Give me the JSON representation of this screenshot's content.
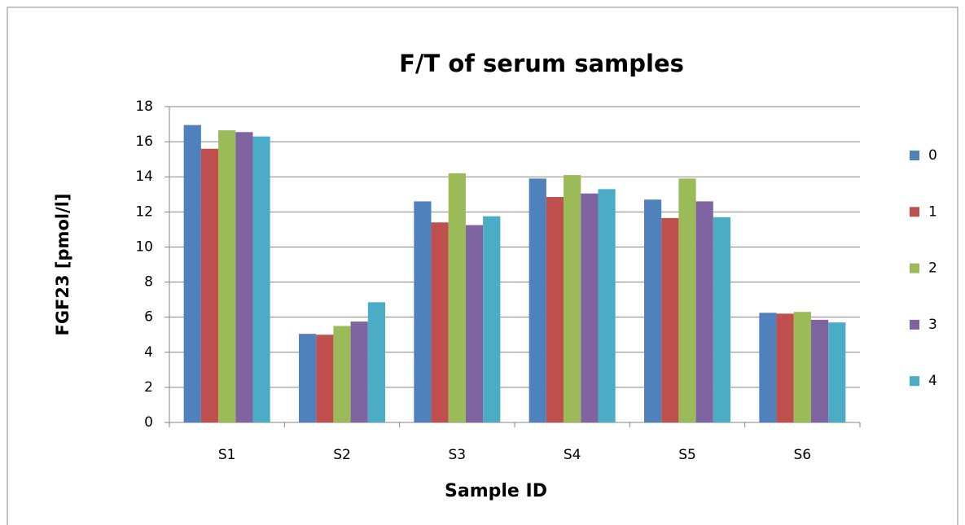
{
  "chart_data": {
    "type": "bar",
    "title": "F/T of serum samples",
    "x_label": "Sample ID",
    "y_label": "FGF23 [pmol/l]",
    "categories": [
      "S1",
      "S2",
      "S3",
      "S4",
      "S5",
      "S6"
    ],
    "series": [
      {
        "name": "0",
        "color": "#4f81bd",
        "values": [
          16.95,
          5.05,
          12.6,
          13.9,
          12.7,
          6.25
        ]
      },
      {
        "name": "1",
        "color": "#c0504d",
        "values": [
          15.6,
          5.0,
          11.4,
          12.85,
          11.65,
          6.2
        ]
      },
      {
        "name": "2",
        "color": "#9bbb59",
        "values": [
          16.65,
          5.5,
          14.2,
          14.1,
          13.9,
          6.3
        ]
      },
      {
        "name": "3",
        "color": "#8064a2",
        "values": [
          16.55,
          5.75,
          11.25,
          13.05,
          12.6,
          5.85
        ]
      },
      {
        "name": "4",
        "color": "#4bacc6",
        "values": [
          16.3,
          6.85,
          11.75,
          13.3,
          11.7,
          5.7
        ]
      }
    ],
    "ylim": [
      0,
      18
    ],
    "yticks": [
      0,
      2,
      4,
      6,
      8,
      10,
      12,
      14,
      16,
      18
    ],
    "grid": true,
    "legend": "right"
  }
}
